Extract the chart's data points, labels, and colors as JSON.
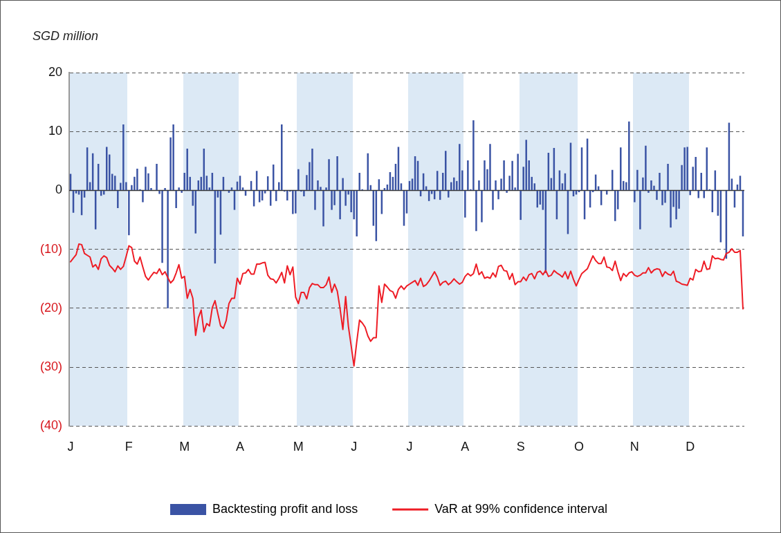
{
  "chart_data": {
    "type": "bar",
    "ylabel": "SGD million",
    "categories": [
      "J",
      null,
      null,
      null,
      null,
      null,
      null,
      null,
      null,
      null,
      null,
      null,
      null,
      null,
      null,
      null,
      null,
      null,
      null,
      null,
      null,
      "F",
      null,
      null,
      null,
      null,
      null,
      null,
      null,
      null,
      null,
      null,
      null,
      null,
      null,
      null,
      null,
      null,
      null,
      null,
      null,
      "M",
      null,
      null,
      null,
      null,
      null,
      null,
      null,
      null,
      null,
      null,
      null,
      null,
      null,
      null,
      null,
      null,
      null,
      null,
      null,
      "A",
      null,
      null,
      null,
      null,
      null,
      null,
      null,
      null,
      null,
      null,
      null,
      null,
      null,
      null,
      null,
      null,
      null,
      null,
      null,
      null,
      "M",
      null,
      null,
      null,
      null,
      null,
      null,
      null,
      null,
      null,
      null,
      null,
      null,
      null,
      null,
      null,
      null,
      null,
      null,
      null,
      "J",
      null,
      null,
      null,
      null,
      null,
      null,
      null,
      null,
      null,
      null,
      null,
      null,
      null,
      null,
      null,
      null,
      null,
      null,
      null,
      "J",
      null,
      null,
      null,
      null,
      null,
      null,
      null,
      null,
      null,
      null,
      null,
      null,
      null,
      null,
      null,
      null,
      null,
      null,
      null,
      "A",
      null,
      null,
      null,
      null,
      null,
      null,
      null,
      null,
      null,
      null,
      null,
      null,
      null,
      null,
      null,
      null,
      null,
      null,
      null,
      "S",
      null,
      null,
      null,
      null,
      null,
      null,
      null,
      null,
      null,
      null,
      null,
      null,
      null,
      null,
      null,
      null,
      null,
      null,
      null,
      null,
      "O",
      null,
      null,
      null,
      null,
      null,
      null,
      null,
      null,
      null,
      null,
      null,
      null,
      null,
      null,
      null,
      null,
      null,
      null,
      null,
      "N",
      null,
      null,
      null,
      null,
      null,
      null,
      null,
      null,
      null,
      null,
      null,
      null,
      null,
      null,
      null,
      null,
      null,
      null,
      null,
      "D",
      null,
      null,
      null,
      null,
      null,
      null,
      null,
      null,
      null,
      null,
      null,
      null,
      null,
      null,
      null,
      null,
      null,
      null,
      null
    ],
    "ylim": [
      -40,
      20
    ],
    "yticks": [
      20,
      10,
      0,
      {
        "value": -10,
        "label": "(10)"
      },
      {
        "value": -20,
        "label": "(20)"
      },
      {
        "value": -30,
        "label": "(30)"
      },
      {
        "value": -40,
        "label": "(40)"
      }
    ],
    "grid": "y",
    "legend": "bottom",
    "marker": "none",
    "series": [
      {
        "name": "Backtesting profit and loss",
        "color": "#3a53a4",
        "values": [
          2.8,
          -3.8,
          -0.5,
          -0.7,
          -4.2,
          -1.2,
          7.3,
          1.4,
          6.3,
          -6.6,
          4.5,
          -0.9,
          -0.7,
          7.4,
          6.1,
          2.8,
          2.5,
          -3.0,
          1.3,
          11.2,
          1.4,
          -7.6,
          0.9,
          2.3,
          3.7,
          0.2,
          -2.0,
          4.0,
          2.9,
          0.4,
          0,
          4.5,
          -0.6,
          -12.3,
          0.4,
          -20,
          9.0,
          11.2,
          -3.0,
          0.5,
          -0.4,
          3.0,
          7.1,
          2.3,
          -2.6,
          -7.3,
          1.7,
          2.3,
          7.1,
          2.5,
          0.5,
          3.0,
          -12.4,
          -1.2,
          -7.5,
          2.3,
          0,
          -0.4,
          0.5,
          -3.3,
          1.5,
          2.5,
          0.5,
          -0.9,
          0,
          1.6,
          -2.7,
          3.3,
          -2.0,
          -1.7,
          -0.5,
          2.4,
          -2.6,
          4.4,
          -1.8,
          1.4,
          11.2,
          -0.2,
          -1.7,
          -0.2,
          -4.0,
          -3.9,
          3.6,
          -0.2,
          -1.0,
          2.6,
          4.8,
          7.1,
          -3.3,
          1.7,
          0.6,
          -6.1,
          0.5,
          5.3,
          -3.3,
          -2.5,
          5.8,
          -4.9,
          2.1,
          -2.6,
          -0.7,
          -3.7,
          -4.9,
          -7.8,
          3.0,
          0.2,
          0,
          6.3,
          0.9,
          -6.0,
          -8.6,
          1.9,
          -4.0,
          0.4,
          1.0,
          3.1,
          2.3,
          4.5,
          7.4,
          1.2,
          -6.0,
          -3.9,
          1.6,
          2.0,
          5.8,
          5.0,
          -1.0,
          2.9,
          0.7,
          -1.8,
          -0.6,
          -1.5,
          3.3,
          -1.6,
          3.0,
          6.7,
          -1.2,
          1.4,
          2.2,
          1.6,
          7.9,
          3.4,
          -4.6,
          5.1,
          0.2,
          11.9,
          -6.9,
          1.7,
          -5.4,
          5.1,
          3.6,
          7.9,
          -3.3,
          1.7,
          -1.5,
          2.0,
          5.1,
          -0.4,
          2.5,
          5.0,
          0.5,
          6.2,
          -5.0,
          4.0,
          8.6,
          5.1,
          2.3,
          1.2,
          -2.9,
          -2.4,
          -3.3,
          -14.0,
          6.4,
          2.1,
          7.2,
          -4.9,
          3.4,
          1.2,
          2.9,
          -7.4,
          8.1,
          -1.0,
          -0.7,
          -0.3,
          7.3,
          -4.9,
          8.8,
          -2.9,
          -0.3,
          2.7,
          0.7,
          -2.5,
          0,
          -0.7,
          null,
          3.5,
          -5.2,
          -3.2,
          7.3,
          1.6,
          1.4,
          11.7,
          null,
          -2.0,
          3.5,
          -6.6,
          2.2,
          7.6,
          -0.4,
          1.7,
          0.8,
          -1.6,
          3.0,
          -2.5,
          -2.1,
          4.5,
          -6.3,
          -2.8,
          -4.9,
          -3.1,
          4.3,
          7.3,
          7.4,
          -0.8,
          4.0,
          5.7,
          -1.3,
          3.0,
          -1.3,
          7.3,
          0.2,
          -3.7,
          3.4,
          -4.3,
          -8.8,
          0,
          -11.6,
          11.5,
          2.0,
          -2.9,
          1.0,
          2.5,
          -7.8
        ]
      },
      {
        "name": "VaR at 99% confidence interval",
        "type": "line",
        "color": "#ee1c25",
        "line_style": "solid",
        "values": [
          -12.1,
          -11.5,
          -10.9,
          -9.1,
          -9.2,
          -10.7,
          -11.0,
          -11.3,
          -13.0,
          -12.6,
          -13.4,
          -11.6,
          -11.1,
          -11.4,
          -12.7,
          -13.2,
          -13.8,
          -12.8,
          -13.4,
          -12.9,
          -11.2,
          -9.4,
          -9.7,
          -12.0,
          -12.5,
          -11.3,
          -13.0,
          -14.6,
          -15.2,
          -14.5,
          -13.9,
          -14.1,
          -13.3,
          -14.3,
          -13.8,
          -14.8,
          -15.7,
          -15.2,
          -14.0,
          -12.6,
          -14.9,
          -14.6,
          -18.3,
          -16.8,
          -18.3,
          -24.6,
          -21.6,
          -20.3,
          -24.0,
          -22.6,
          -23.0,
          -19.9,
          -18.7,
          -20.9,
          -23.0,
          -23.4,
          -22.1,
          -19.2,
          -18.3,
          -18.3,
          -14.9,
          -15.9,
          -14.1,
          -14.0,
          -13.4,
          -14.2,
          -14.2,
          -12.5,
          -12.5,
          -12.3,
          -12.2,
          -14.4,
          -15.0,
          -15.1,
          -15.7,
          -14.9,
          -13.9,
          -15.7,
          -12.8,
          -14.3,
          -13.0,
          -18.1,
          -19.2,
          -17.3,
          -17.3,
          -18.4,
          -16.5,
          -15.8,
          -16.0,
          -16.0,
          -16.5,
          -16.5,
          -16.0,
          -14.7,
          -17.3,
          -15.9,
          -17.1,
          -20.1,
          -23.6,
          -18.0,
          -23.1,
          -26.4,
          -29.8,
          -25.7,
          -22.0,
          -22.5,
          -23.2,
          -24.7,
          -25.6,
          -25.0,
          -25.0,
          -16.2,
          -19.0,
          -15.9,
          -16.4,
          -17.0,
          -17.2,
          -18.3,
          -16.8,
          -16.2,
          -16.8,
          -16.2,
          -15.9,
          -15.6,
          -15.3,
          -16.1,
          -14.9,
          -16.3,
          -16.0,
          -15.4,
          -14.6,
          -13.8,
          -14.7,
          -16.1,
          -15.6,
          -15.4,
          -16.0,
          -15.6,
          -15.0,
          -15.5,
          -15.9,
          -15.6,
          -14.6,
          -14.1,
          -14.5,
          -14.1,
          -12.5,
          -14.3,
          -13.8,
          -14.9,
          -14.7,
          -14.9,
          -14.0,
          -14.7,
          -12.9,
          -12.7,
          -13.6,
          -13.7,
          -15.1,
          -14.1,
          -16.0,
          -15.5,
          -15.5,
          -14.7,
          -15.3,
          -14.3,
          -14.1,
          -15.0,
          -13.9,
          -13.7,
          -14.3,
          -13.6,
          -14.6,
          -14.4,
          -13.6,
          -14.0,
          -14.3,
          -14.7,
          -13.8,
          -15.0,
          -13.7,
          -15.1,
          -16.2,
          -15.1,
          -14.1,
          -13.7,
          -13.3,
          -12.2,
          -11.1,
          -11.9,
          -12.4,
          -12.4,
          -11.3,
          -13.0,
          -13.1,
          -13.6,
          -12.0,
          -13.8,
          -15.3,
          -14.1,
          -14.6,
          -14.0,
          -13.8,
          -14.4,
          -14.6,
          -14.4,
          -14.0,
          -14.0,
          -13.1,
          -14.0,
          -13.5,
          -13.3,
          -13.4,
          -14.6,
          -13.8,
          -14.2,
          -14.4,
          -13.7,
          -15.4,
          -15.6,
          -15.9,
          -16.0,
          -16.1,
          -14.9,
          -15.2,
          -13.4,
          -13.8,
          -13.7,
          -12.0,
          -13.4,
          -13.3,
          -11.1,
          -11.6,
          -11.5,
          -11.7,
          -11.8,
          -10.7,
          -10.5,
          -9.9,
          -10.5,
          -10.5,
          -10.2,
          -20.1
        ]
      }
    ]
  }
}
